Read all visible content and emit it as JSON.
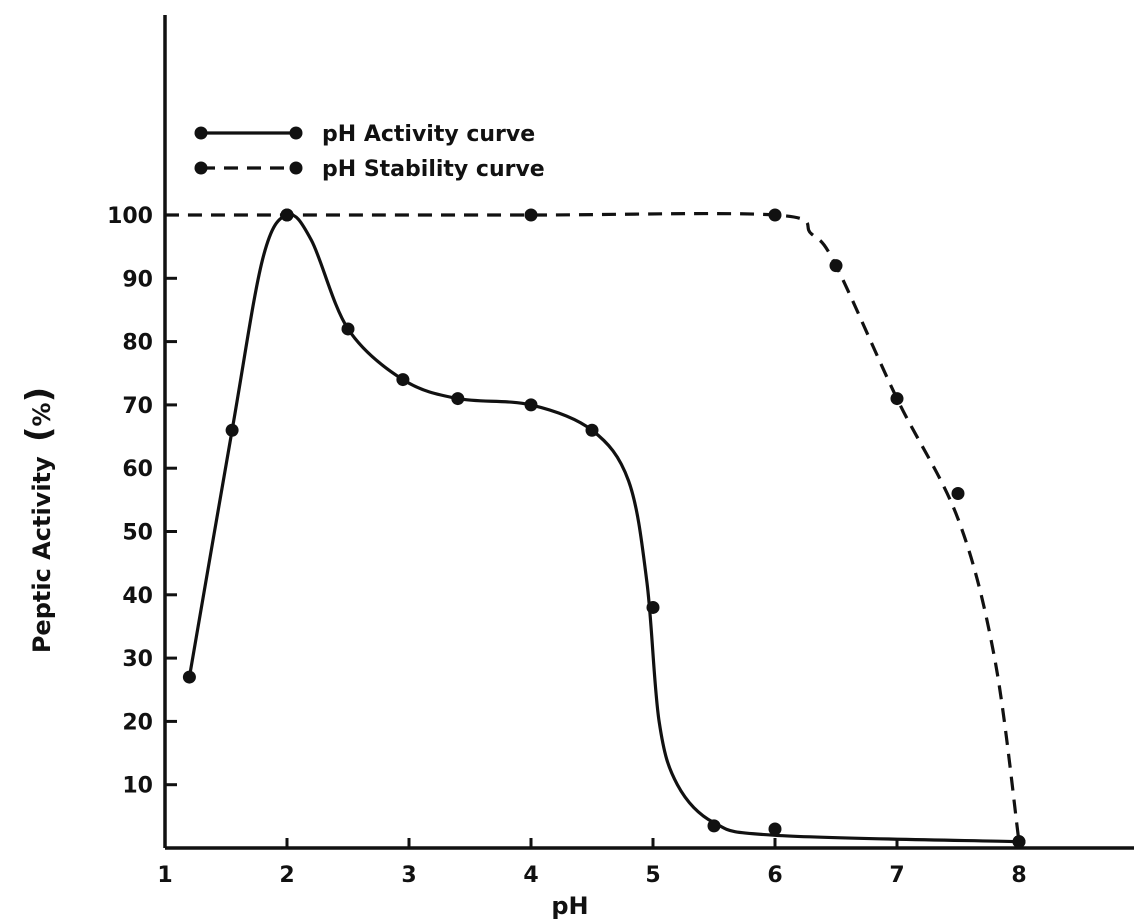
{
  "chart_data": {
    "type": "line",
    "title": "",
    "xlabel": "pH",
    "ylabel": "Peptic Activity",
    "ylabel_unit": "%",
    "xlim": [
      1,
      9
    ],
    "ylim": [
      0,
      100
    ],
    "x_ticks": [
      1,
      2,
      3,
      4,
      5,
      6,
      7,
      8
    ],
    "x_tick_labels": [
      "1",
      "2",
      "3",
      "4",
      "5",
      "6",
      "7",
      "8"
    ],
    "y_ticks": [
      10,
      20,
      30,
      40,
      50,
      60,
      70,
      80,
      90,
      100
    ],
    "y_tick_labels": [
      "10",
      "20",
      "30",
      "40",
      "50",
      "60",
      "70",
      "80",
      "90",
      "100"
    ],
    "grid": false,
    "legend_position": "top-left",
    "series": [
      {
        "name": "pH Activity curve",
        "line_style": "solid",
        "points": [
          {
            "x": 1.2,
            "y": 27
          },
          {
            "x": 1.55,
            "y": 66
          },
          {
            "x": 2.0,
            "y": 100
          },
          {
            "x": 2.5,
            "y": 82
          },
          {
            "x": 2.95,
            "y": 74
          },
          {
            "x": 3.4,
            "y": 71
          },
          {
            "x": 4.0,
            "y": 70
          },
          {
            "x": 4.5,
            "y": 66
          },
          {
            "x": 5.0,
            "y": 38
          },
          {
            "x": 5.5,
            "y": 3.5
          },
          {
            "x": 6.0,
            "y": 3
          },
          {
            "x": 8.0,
            "y": 1
          }
        ],
        "curve": [
          [
            1.2,
            27
          ],
          [
            1.55,
            66
          ],
          [
            1.8,
            93
          ],
          [
            2.0,
            100
          ],
          [
            2.2,
            96
          ],
          [
            2.5,
            82
          ],
          [
            2.95,
            74
          ],
          [
            3.4,
            71
          ],
          [
            4.0,
            70
          ],
          [
            4.5,
            66
          ],
          [
            4.8,
            58
          ],
          [
            4.95,
            42
          ],
          [
            5.05,
            20
          ],
          [
            5.2,
            10
          ],
          [
            5.5,
            4
          ],
          [
            6.0,
            2
          ],
          [
            8.0,
            1
          ]
        ]
      },
      {
        "name": "pH Stability curve",
        "line_style": "dashed",
        "points": [
          {
            "x": 2.0,
            "y": 100
          },
          {
            "x": 4.0,
            "y": 100
          },
          {
            "x": 6.0,
            "y": 100
          },
          {
            "x": 6.5,
            "y": 92
          },
          {
            "x": 7.0,
            "y": 71
          },
          {
            "x": 7.5,
            "y": 56
          },
          {
            "x": 8.0,
            "y": 1
          }
        ],
        "curve": [
          [
            1.0,
            100
          ],
          [
            2.0,
            100
          ],
          [
            4.0,
            100
          ],
          [
            6.0,
            100
          ],
          [
            6.3,
            97
          ],
          [
            6.5,
            92
          ],
          [
            7.0,
            71
          ],
          [
            7.5,
            52
          ],
          [
            7.8,
            30
          ],
          [
            8.0,
            1
          ]
        ]
      }
    ]
  }
}
